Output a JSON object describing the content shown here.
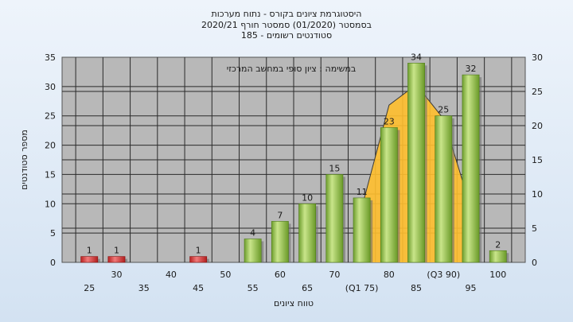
{
  "chart_data": {
    "type": "bar",
    "title_lines": [
      "היסטוגרמת ציונים בקורס - נתוח מערכות",
      "בסמסטר  (01/2020)  סמסטר חורף  2020/21",
      "סטודנטים רשומים - 185"
    ],
    "annotation": "במשימה : ציון סופי במחשב המרכזי",
    "xlabel": "טווח ציונים",
    "ylabel": "מספר סטודנטים",
    "x_ticks": [
      "25",
      "30",
      "35",
      "40",
      "45",
      "50",
      "55",
      "60",
      "65",
      "70",
      "(Q1 75)",
      "80",
      "85",
      "(Q3 90)",
      "95",
      "100"
    ],
    "categories": [
      25,
      30,
      35,
      40,
      45,
      50,
      55,
      60,
      65,
      70,
      75,
      80,
      85,
      90,
      95,
      100
    ],
    "values": [
      1,
      1,
      0,
      0,
      1,
      0,
      4,
      7,
      10,
      15,
      11,
      23,
      34,
      25,
      32,
      2
    ],
    "value_labels": [
      "1",
      "1",
      "",
      "",
      "1",
      "",
      "4",
      "7",
      "10",
      "15",
      "11",
      "23",
      "34",
      "25",
      "32",
      "2"
    ],
    "highlight_categories": [
      25,
      30,
      45
    ],
    "ylim_left": [
      0,
      35
    ],
    "y_ticks_left": [
      0,
      5,
      10,
      15,
      20,
      25,
      30,
      35
    ],
    "ylim_right": [
      0,
      30
    ],
    "y_ticks_right": [
      0,
      5,
      10,
      15,
      20,
      25,
      30
    ],
    "area_series": {
      "axis": "right",
      "points": [
        [
          75,
          8
        ],
        [
          80,
          23
        ],
        [
          85,
          26
        ],
        [
          90,
          21
        ],
        [
          95,
          8
        ]
      ]
    },
    "colors": {
      "bar_main": "#8cc046",
      "bar_highlight": "#e03c3c",
      "area": "#ffbf2e",
      "plot_bg": "#b8b8b8"
    }
  }
}
